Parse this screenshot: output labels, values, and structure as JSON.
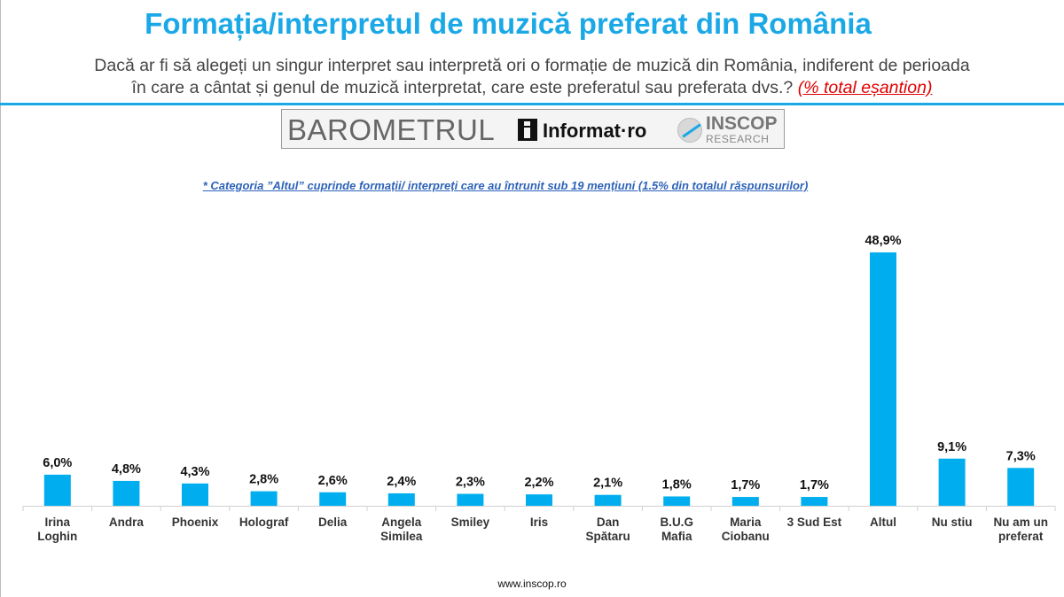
{
  "header": {
    "title": "Formația/interpretul de muzică preferat din România",
    "subtitle_line1": "Dacă ar fi să alegeți un singur interpret sau interpretă ori o formație de muzică din România, indiferent de perioada",
    "subtitle_line2": "în care a cântat și genul de muzică interpretat, care este preferatul sau preferata dvs.? ",
    "subtitle_sample": "(% total eșantion)"
  },
  "logos": {
    "barometrul": "BAROMETRUL",
    "informat": "Informat·ro",
    "inscop": "INSCOP",
    "inscop_sub": "RESEARCH"
  },
  "note": "* Categoria ”Altul” cuprinde formații/ interpreți care au întrunit sub 19 mențiuni (1.5% din totalul răspunsurilor)",
  "footer": "www.inscop.ro",
  "colors": {
    "accent": "#1aa8e6",
    "bar": "#00aeef",
    "sample_red": "#e00000",
    "note_blue": "#2e63b8"
  },
  "chart_data": {
    "type": "bar",
    "categories": [
      "Irina Loghin",
      "Andra",
      "Phoenix",
      "Holograf",
      "Delia",
      "Angela Similea",
      "Smiley",
      "Iris",
      "Dan Spătaru",
      "B.U.G Mafia",
      "Maria Ciobanu",
      "3 Sud Est",
      "Altul",
      "Nu stiu",
      "Nu am un preferat"
    ],
    "category_lines": [
      [
        "Irina",
        "Loghin"
      ],
      [
        "Andra"
      ],
      [
        "Phoenix"
      ],
      [
        "Holograf"
      ],
      [
        "Delia"
      ],
      [
        "Angela",
        "Similea"
      ],
      [
        "Smiley"
      ],
      [
        "Iris"
      ],
      [
        "Dan",
        "Spătaru"
      ],
      [
        "B.U.G",
        "Mafia"
      ],
      [
        "Maria",
        "Ciobanu"
      ],
      [
        "3 Sud Est"
      ],
      [
        "Altul"
      ],
      [
        "Nu stiu"
      ],
      [
        "Nu am un",
        "preferat"
      ]
    ],
    "values": [
      6.0,
      4.8,
      4.3,
      2.8,
      2.6,
      2.4,
      2.3,
      2.2,
      2.1,
      1.8,
      1.7,
      1.7,
      48.9,
      9.1,
      7.3
    ],
    "data_labels": [
      "6,0%",
      "4,8%",
      "4,3%",
      "2,8%",
      "2,6%",
      "2,4%",
      "2,3%",
      "2,2%",
      "2,1%",
      "1,8%",
      "1,7%",
      "1,7%",
      "48,9%",
      "9,1%",
      "7,3%"
    ],
    "ylim": [
      0,
      50
    ],
    "grid": false,
    "legend": "none"
  }
}
